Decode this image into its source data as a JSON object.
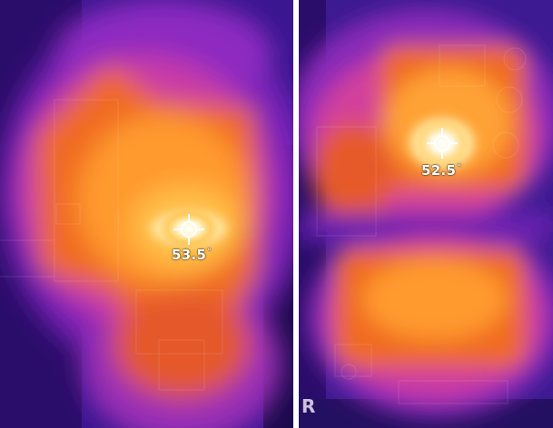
{
  "panels": [
    {
      "id": "left",
      "reading": "53.5",
      "unit": "°"
    },
    {
      "id": "right",
      "reading": "52.5",
      "unit": "°"
    }
  ],
  "watermark": "R",
  "palette": {
    "cold": "#1a0a4a",
    "cool": "#5b1fa8",
    "mid": "#c02fb8",
    "warm": "#f2691e",
    "hot": "#ffb23a",
    "peak": "#fffbe8",
    "divider": "#ffffff"
  }
}
